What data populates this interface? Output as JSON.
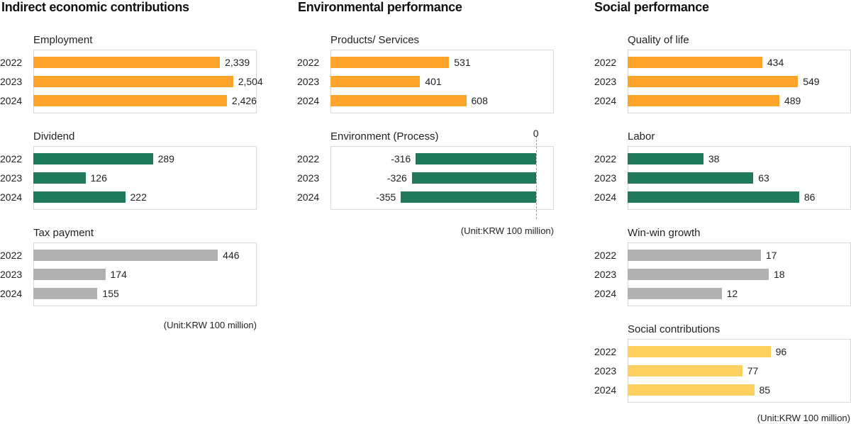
{
  "chart_data": [
    {
      "type": "bar",
      "orientation": "horizontal",
      "section": "Indirect economic contributions",
      "title": "Employment",
      "categories": [
        "2022",
        "2023",
        "2024"
      ],
      "values": [
        2339,
        2504,
        2426
      ],
      "labels": [
        "2,339",
        "2,504",
        "2,426"
      ],
      "xlim": [
        0,
        2800
      ],
      "color": "#ffa42b"
    },
    {
      "type": "bar",
      "orientation": "horizontal",
      "section": "Indirect economic contributions",
      "title": "Dividend",
      "categories": [
        "2022",
        "2023",
        "2024"
      ],
      "values": [
        289,
        126,
        222
      ],
      "labels": [
        "289",
        "126",
        "222"
      ],
      "xlim": [
        0,
        540
      ],
      "color": "#1f7a5c"
    },
    {
      "type": "bar",
      "orientation": "horizontal",
      "section": "Indirect economic contributions",
      "title": "Tax payment",
      "categories": [
        "2022",
        "2023",
        "2024"
      ],
      "values": [
        446,
        174,
        155
      ],
      "labels": [
        "446",
        "174",
        "155"
      ],
      "xlim": [
        0,
        540
      ],
      "color": "#b1b1b1"
    },
    {
      "type": "bar",
      "orientation": "horizontal",
      "section": "Environmental performance",
      "title": "Products/ Services",
      "categories": [
        "2022",
        "2023",
        "2024"
      ],
      "values": [
        531,
        401,
        608
      ],
      "labels": [
        "531",
        "401",
        "608"
      ],
      "xlim": [
        0,
        1000
      ],
      "color": "#ffa42b"
    },
    {
      "type": "bar",
      "orientation": "horizontal",
      "section": "Environmental performance",
      "title": "Environment (Process)",
      "categories": [
        "2022",
        "2023",
        "2024"
      ],
      "values": [
        -316,
        -326,
        -355
      ],
      "labels": [
        "-316",
        "-326",
        "-355"
      ],
      "xlim": [
        -540,
        47
      ],
      "zero_label": "0",
      "color": "#1f7a5c"
    },
    {
      "type": "bar",
      "orientation": "horizontal",
      "section": "Social performance",
      "title": "Quality of life",
      "categories": [
        "2022",
        "2023",
        "2024"
      ],
      "values": [
        434,
        549,
        489
      ],
      "labels": [
        "434",
        "549",
        "489"
      ],
      "xlim": [
        0,
        720
      ],
      "color": "#ffa42b"
    },
    {
      "type": "bar",
      "orientation": "horizontal",
      "section": "Social performance",
      "title": "Labor",
      "categories": [
        "2022",
        "2023",
        "2024"
      ],
      "values": [
        38,
        63,
        86
      ],
      "labels": [
        "38",
        "63",
        "86"
      ],
      "xlim": [
        0,
        112
      ],
      "color": "#1f7a5c"
    },
    {
      "type": "bar",
      "orientation": "horizontal",
      "section": "Social performance",
      "title": "Win-win growth",
      "categories": [
        "2022",
        "2023",
        "2024"
      ],
      "values": [
        17,
        18,
        12
      ],
      "labels": [
        "17",
        "18",
        "12"
      ],
      "xlim": [
        0,
        28.5
      ],
      "color": "#b1b1b1"
    },
    {
      "type": "bar",
      "orientation": "horizontal",
      "section": "Social performance",
      "title": "Social contributions",
      "categories": [
        "2022",
        "2023",
        "2024"
      ],
      "values": [
        96,
        77,
        85
      ],
      "labels": [
        "96",
        "77",
        "85"
      ],
      "xlim": [
        0,
        150
      ],
      "color": "#fdd062"
    }
  ],
  "sections": {
    "economic": "Indirect economic contributions",
    "environmental": "Environmental performance",
    "social": "Social performance"
  },
  "units": {
    "economic": "(Unit:KRW 100 million)",
    "environmental": "(Unit:KRW 100 million)",
    "social": "(Unit:KRW 100 million)"
  }
}
